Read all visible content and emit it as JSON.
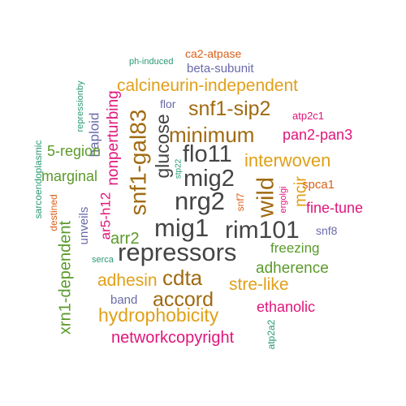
{
  "palette": {
    "gray": "#444444",
    "brown": "#a06a11",
    "gold": "#e0a018",
    "green": "#5a9a2a",
    "magenta": "#e0157a",
    "purple": "#6a6aaa",
    "orange": "#d8601a",
    "teal": "#2a9a72"
  },
  "words": [
    {
      "id": "ph-induced",
      "text": "ph-induced",
      "color": "teal"
    },
    {
      "id": "ca2-atpase",
      "text": "ca2-atpase",
      "color": "orange"
    },
    {
      "id": "beta-subunit",
      "text": "beta-subunit",
      "color": "purple"
    },
    {
      "id": "nonperturbing",
      "text": "nonperturbing",
      "color": "magenta"
    },
    {
      "id": "repressionby",
      "text": "repressionby",
      "color": "teal"
    },
    {
      "id": "haploid",
      "text": "haploid",
      "color": "purple"
    },
    {
      "id": "calcineurin-independent",
      "text": "calcineurin-independent",
      "color": "gold"
    },
    {
      "id": "flor",
      "text": "flor",
      "color": "purple"
    },
    {
      "id": "snf1-sip2",
      "text": "snf1-sip2",
      "color": "brown"
    },
    {
      "id": "atp2c1",
      "text": "atp2c1",
      "color": "magenta"
    },
    {
      "id": "sarcoendoplasmic",
      "text": "sarcoendoplasmic",
      "color": "teal"
    },
    {
      "id": "snf1-gal83",
      "text": "snf1-gal83",
      "color": "brown"
    },
    {
      "id": "glucose",
      "text": "glucose",
      "color": "gray"
    },
    {
      "id": "minimum",
      "text": "minimum",
      "color": "brown"
    },
    {
      "id": "pan2-pan3",
      "text": "pan2-pan3",
      "color": "magenta"
    },
    {
      "id": "5-region",
      "text": "5-region",
      "color": "green"
    },
    {
      "id": "flo11",
      "text": "flo11",
      "color": "gray"
    },
    {
      "id": "interwoven",
      "text": "interwoven",
      "color": "gold"
    },
    {
      "id": "marginal",
      "text": "marginal",
      "color": "green"
    },
    {
      "id": "stp22",
      "text": "stp22",
      "color": "teal"
    },
    {
      "id": "mig2",
      "text": "mig2",
      "color": "gray"
    },
    {
      "id": "spca1",
      "text": "spca1",
      "color": "orange"
    },
    {
      "id": "destined",
      "text": "destined",
      "color": "orange"
    },
    {
      "id": "ar5-h12",
      "text": "ar5-h12",
      "color": "magenta"
    },
    {
      "id": "nrg2",
      "text": "nrg2",
      "color": "gray"
    },
    {
      "id": "snf7",
      "text": "snf7",
      "color": "orange"
    },
    {
      "id": "wild",
      "text": "wild",
      "color": "brown"
    },
    {
      "id": "ergolgi",
      "text": "ergolgi",
      "color": "magenta"
    },
    {
      "id": "mcir",
      "text": "mcir",
      "color": "gold"
    },
    {
      "id": "fine-tune",
      "text": "fine-tune",
      "color": "magenta"
    },
    {
      "id": "unveils",
      "text": "unveils",
      "color": "purple"
    },
    {
      "id": "mig1",
      "text": "mig1",
      "color": "gray"
    },
    {
      "id": "rim101",
      "text": "rim101",
      "color": "gray"
    },
    {
      "id": "snf8",
      "text": "snf8",
      "color": "purple"
    },
    {
      "id": "arr2",
      "text": "arr2",
      "color": "green"
    },
    {
      "id": "freezing",
      "text": "freezing",
      "color": "green"
    },
    {
      "id": "serca",
      "text": "serca",
      "color": "teal"
    },
    {
      "id": "repressors",
      "text": "repressors",
      "color": "gray"
    },
    {
      "id": "xrn1-dependent",
      "text": "xrn1-dependent",
      "color": "green"
    },
    {
      "id": "adherence",
      "text": "adherence",
      "color": "green"
    },
    {
      "id": "adhesin",
      "text": "adhesin",
      "color": "gold"
    },
    {
      "id": "cdta",
      "text": "cdta",
      "color": "brown"
    },
    {
      "id": "stre-like",
      "text": "stre-like",
      "color": "gold"
    },
    {
      "id": "band",
      "text": "band",
      "color": "purple"
    },
    {
      "id": "accord",
      "text": "accord",
      "color": "brown"
    },
    {
      "id": "ethanolic",
      "text": "ethanolic",
      "color": "magenta"
    },
    {
      "id": "hydrophobicity",
      "text": "hydrophobicity",
      "color": "gold"
    },
    {
      "id": "atp2a2",
      "text": "atp2a2",
      "color": "teal"
    },
    {
      "id": "networkcopyright",
      "text": "networkcopyright",
      "color": "magenta"
    }
  ]
}
